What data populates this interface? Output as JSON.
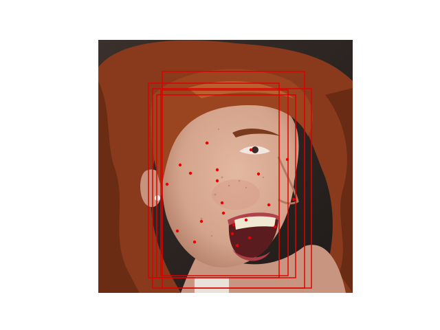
{
  "figure": {
    "photo": {
      "subject": "face-photo",
      "colors": {
        "background": "#2a2421",
        "hair": "#8f3d1f",
        "hair_dark": "#5e2712",
        "hair_light": "#b8602f",
        "skin": "#d9ab93",
        "skin_shadow": "#b98670",
        "lips": "#b0424a",
        "mouth_inside": "#5a1c1f",
        "teeth": "#efe9d2",
        "eye_dark": "#3a2b2a",
        "earring": "#f3f1ea"
      }
    },
    "overlay": {
      "box_color": "#dd0000",
      "landmark_color": "#ee0000",
      "box_count": 5,
      "landmark_count": 22
    }
  }
}
